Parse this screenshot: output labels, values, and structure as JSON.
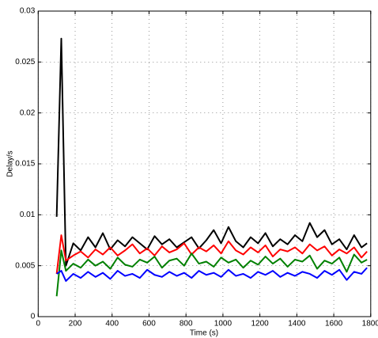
{
  "chart_data": {
    "type": "line",
    "xlabel": "Time (s)",
    "ylabel": "Delay/s",
    "x": [
      100,
      125,
      150,
      190,
      230,
      270,
      310,
      350,
      390,
      430,
      470,
      510,
      550,
      590,
      630,
      670,
      710,
      750,
      790,
      830,
      870,
      910,
      950,
      990,
      1030,
      1070,
      1110,
      1150,
      1190,
      1230,
      1270,
      1310,
      1350,
      1390,
      1430,
      1470,
      1510,
      1550,
      1590,
      1630,
      1670,
      1710,
      1750,
      1780
    ],
    "series": [
      {
        "color": "#000000",
        "values": [
          0.0098,
          0.0273,
          0.005,
          0.0072,
          0.0065,
          0.0078,
          0.0068,
          0.0082,
          0.0066,
          0.0075,
          0.0069,
          0.0078,
          0.0072,
          0.0066,
          0.0079,
          0.0071,
          0.0076,
          0.0068,
          0.0073,
          0.0078,
          0.0067,
          0.0075,
          0.0085,
          0.0072,
          0.0088,
          0.0074,
          0.0068,
          0.0078,
          0.0072,
          0.0082,
          0.0069,
          0.0076,
          0.0071,
          0.008,
          0.0074,
          0.0092,
          0.0078,
          0.0085,
          0.0071,
          0.0076,
          0.0066,
          0.008,
          0.0068,
          0.0072
        ]
      },
      {
        "color": "#ff0000",
        "values": [
          0.0042,
          0.008,
          0.0055,
          0.006,
          0.0064,
          0.0058,
          0.0066,
          0.0061,
          0.0068,
          0.006,
          0.0065,
          0.0071,
          0.0062,
          0.0067,
          0.006,
          0.0069,
          0.0063,
          0.0066,
          0.0072,
          0.0061,
          0.0068,
          0.0064,
          0.007,
          0.0062,
          0.0074,
          0.0065,
          0.0061,
          0.0068,
          0.0063,
          0.007,
          0.0059,
          0.0066,
          0.0064,
          0.0068,
          0.0062,
          0.0071,
          0.0065,
          0.0069,
          0.006,
          0.0066,
          0.0062,
          0.0068,
          0.0058,
          0.0064
        ]
      },
      {
        "color": "#008000",
        "values": [
          0.002,
          0.0065,
          0.0045,
          0.0052,
          0.0048,
          0.0056,
          0.005,
          0.0054,
          0.0047,
          0.0058,
          0.0051,
          0.0049,
          0.0056,
          0.0053,
          0.0059,
          0.0048,
          0.0055,
          0.0057,
          0.005,
          0.0062,
          0.0052,
          0.0054,
          0.0049,
          0.0058,
          0.0053,
          0.0056,
          0.0048,
          0.0055,
          0.0051,
          0.0059,
          0.0052,
          0.0057,
          0.0049,
          0.0056,
          0.0054,
          0.006,
          0.0047,
          0.0055,
          0.0052,
          0.0058,
          0.0044,
          0.0061,
          0.0053,
          0.0056
        ]
      },
      {
        "color": "#0000ff",
        "values": [
          0.0042,
          0.0045,
          0.0035,
          0.0042,
          0.0038,
          0.0044,
          0.0039,
          0.0043,
          0.0037,
          0.0045,
          0.004,
          0.0042,
          0.0038,
          0.0046,
          0.0041,
          0.0039,
          0.0044,
          0.004,
          0.0043,
          0.0038,
          0.0045,
          0.0041,
          0.0043,
          0.0039,
          0.0046,
          0.004,
          0.0042,
          0.0038,
          0.0044,
          0.0041,
          0.0045,
          0.0039,
          0.0043,
          0.004,
          0.0044,
          0.0042,
          0.0038,
          0.0045,
          0.0041,
          0.0046,
          0.0036,
          0.0044,
          0.0042,
          0.0048
        ]
      }
    ],
    "xlim": [
      0,
      1800
    ],
    "xticks": [
      0,
      200,
      400,
      600,
      800,
      1000,
      1200,
      1400,
      1600,
      1800
    ],
    "ylim": [
      0,
      0.03
    ],
    "yticks": [
      0,
      0.005,
      0.01,
      0.015,
      0.02,
      0.025,
      0.03
    ],
    "grid": true
  }
}
